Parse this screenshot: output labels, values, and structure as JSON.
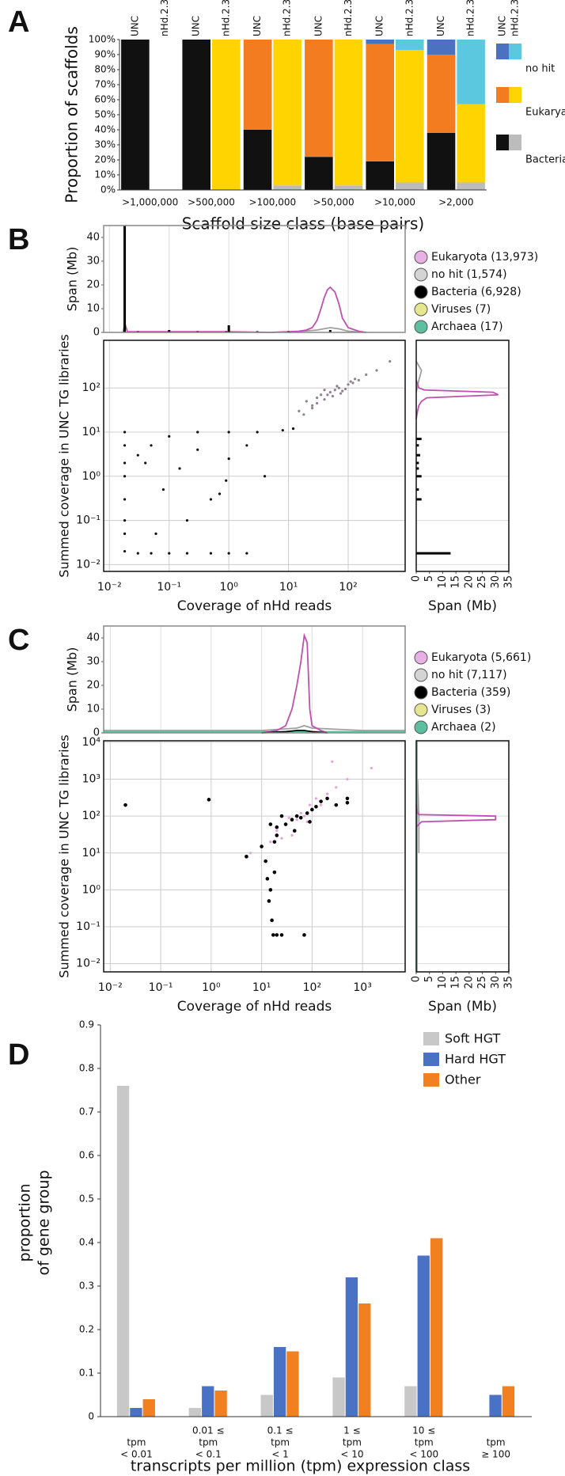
{
  "chart_data": [
    {
      "label": "A",
      "type": "stacked_bar",
      "ylabel": "Proportion of scaffolds",
      "xlabel": "Scaffold size class (base pairs)",
      "categories": [
        ">1,000,000",
        ">500,000",
        ">100,000",
        ">50,000",
        ">10,000",
        ">2,000"
      ],
      "groups": [
        "UNC",
        "nHd.2.3"
      ],
      "ylim": [
        0,
        100
      ],
      "yticks": [
        {
          "value": 0,
          "label": "0%"
        },
        {
          "value": 10,
          "label": "10%"
        },
        {
          "value": 20,
          "label": "20%"
        },
        {
          "value": 30,
          "label": "30%"
        },
        {
          "value": 40,
          "label": "40%"
        },
        {
          "value": 50,
          "label": "50%"
        },
        {
          "value": 60,
          "label": "60%"
        },
        {
          "value": 70,
          "label": "70%"
        },
        {
          "value": 80,
          "label": "80%"
        },
        {
          "value": 90,
          "label": "90%"
        },
        {
          "value": 100,
          "label": "100%"
        }
      ],
      "series": [
        {
          "name": "Bacteria",
          "colors": [
            "#111111",
            "#bcbcbc"
          ],
          "values": [
            [
              100,
              0
            ],
            [
              100,
              0
            ],
            [
              40,
              3
            ],
            [
              22,
              3
            ],
            [
              19,
              5
            ],
            [
              38,
              5
            ]
          ]
        },
        {
          "name": "Eukarya",
          "colors": [
            "#f47c20",
            "#ffd400"
          ],
          "values": [
            [
              0,
              0
            ],
            [
              0,
              100
            ],
            [
              60,
              97
            ],
            [
              78,
              97
            ],
            [
              78,
              88
            ],
            [
              52,
              52
            ]
          ]
        },
        {
          "name": "no hit",
          "colors": [
            "#4a72c0",
            "#5cc8e0"
          ],
          "values": [
            [
              0,
              0
            ],
            [
              0,
              0
            ],
            [
              0,
              0
            ],
            [
              0,
              0
            ],
            [
              3,
              7
            ],
            [
              10,
              43
            ]
          ]
        }
      ]
    },
    {
      "label": "B",
      "type": "scatter_marginal",
      "ylabel": "Summed coverage in UNC TG libraries",
      "xlabel": "Coverage of nHd reads",
      "log": true,
      "grid": true,
      "xlim": [
        0.008,
        900
      ],
      "ylim": [
        0.007,
        1200
      ],
      "xticks": [
        {
          "value": 0.01,
          "label": "10⁻²"
        },
        {
          "value": 0.1,
          "label": "10⁻¹"
        },
        {
          "value": 1,
          "label": "10⁰"
        },
        {
          "value": 10,
          "label": "10¹"
        },
        {
          "value": 100,
          "label": "10²"
        }
      ],
      "yticks": [
        {
          "value": 0.01,
          "label": "10⁻²"
        },
        {
          "value": 0.1,
          "label": "10⁻¹"
        },
        {
          "value": 1,
          "label": "10⁰"
        },
        {
          "value": 10,
          "label": "10¹"
        },
        {
          "value": 100,
          "label": "10²"
        }
      ],
      "legend": [
        {
          "label": "Eukaryota (13,973)",
          "color": "#e8b0e4"
        },
        {
          "label": "no hit (1,574)",
          "color": "#d4d4d4"
        },
        {
          "label": "Bacteria (6,928)",
          "color": "#000000"
        },
        {
          "label": "Viruses (7)",
          "color": "#e6e690"
        },
        {
          "label": "Archaea (17)",
          "color": "#5cc0a0"
        }
      ],
      "series": [
        {
          "color": "#8f818f",
          "x": [
            15,
            20,
            25,
            30,
            35,
            40,
            50,
            60,
            70,
            80,
            100,
            120,
            150,
            200,
            30,
            45,
            55,
            65,
            90,
            110,
            25,
            40,
            75,
            130,
            300,
            500,
            18,
            12
          ],
          "values": [
            30,
            50,
            40,
            60,
            70,
            55,
            80,
            90,
            100,
            85,
            120,
            130,
            150,
            200,
            45,
            70,
            65,
            110,
            95,
            140,
            35,
            90,
            75,
            160,
            250,
            400,
            25,
            12
          ]
        },
        {
          "color": "#111111",
          "x": [
            0.018,
            0.018,
            0.018,
            0.018,
            0.018,
            0.018,
            0.018,
            0.018,
            0.03,
            0.05,
            0.1,
            0.2,
            0.5,
            1,
            2,
            0.03,
            0.05,
            0.1,
            0.3,
            1,
            3,
            8,
            12,
            0.04,
            0.08,
            0.15,
            0.3,
            0.5,
            0.9,
            0.2,
            2,
            0.7,
            0.06,
            4,
            1
          ],
          "values": [
            0.02,
            0.05,
            0.1,
            0.3,
            1,
            2,
            5,
            10,
            0.018,
            0.018,
            0.018,
            0.018,
            0.018,
            0.018,
            0.018,
            3,
            5,
            8,
            10,
            10,
            10,
            11,
            12,
            2,
            0.5,
            1.5,
            4,
            0.3,
            0.8,
            0.1,
            5,
            0.4,
            0.05,
            1,
            2.5
          ]
        }
      ],
      "top": {
        "ylabel": "Span (Mb)",
        "ylim": [
          0,
          45
        ],
        "yticks": [
          0,
          10,
          20,
          30,
          40
        ],
        "series": [
          {
            "style": "line",
            "color": "#a0a0a0",
            "x": [
              10,
              30,
              50,
              70,
              100,
              200
            ],
            "values": [
              0,
              1,
              2,
              1.5,
              0.5,
              0
            ]
          },
          {
            "style": "line",
            "color": "#c050b0",
            "x": [
              0.017,
              0.018,
              0.02,
              1,
              5,
              8,
              10,
              15,
              20,
              25,
              30,
              35,
              40,
              45,
              50,
              60,
              70,
              80,
              100,
              150,
              200
            ],
            "values": [
              0,
              4,
              0.3,
              0.3,
              0,
              0.2,
              0.3,
              0.5,
              1,
              2,
              5,
              10,
              15,
              18,
              19,
              17,
              12,
              6,
              2,
              0.5,
              0
            ]
          },
          {
            "style": "bar",
            "color": "#000000",
            "x": [
              0.018,
              0.03,
              0.1,
              0.3,
              0.9,
              1,
              3,
              10,
              50
            ],
            "values": [
              45,
              0.5,
              1,
              0.5,
              0.5,
              3,
              0.5,
              0.5,
              1
            ]
          }
        ]
      },
      "right": {
        "xlabel": "Span (Mb)",
        "xlim": [
          0,
          35
        ],
        "xticks": [
          0,
          5,
          10,
          15,
          20,
          25,
          30,
          35
        ],
        "series": [
          {
            "style": "line",
            "color": "#a0a0a0",
            "y": [
              80,
              150,
              250,
              400
            ],
            "values": [
              0,
              1,
              2,
              0
            ]
          },
          {
            "style": "line",
            "color": "#c050b0",
            "y": [
              20,
              30,
              40,
              50,
              60,
              70,
              80,
              90,
              100,
              150
            ],
            "values": [
              0,
              0.5,
              1,
              2,
              4,
              31,
              29,
              3,
              1,
              0
            ]
          },
          {
            "style": "bar",
            "color": "#000000",
            "y": [
              0.018,
              0.3,
              0.5,
              1,
              1.5,
              2,
              3,
              5,
              7
            ],
            "values": [
              13,
              2,
              1,
              2,
              1,
              1,
              1.5,
              1,
              2
            ]
          }
        ]
      }
    },
    {
      "label": "C",
      "type": "scatter_marginal",
      "ylabel": "Summed coverage in UNC TG libraries",
      "xlabel": "Coverage of nHd reads",
      "log": true,
      "grid": true,
      "xlim": [
        0.0074,
        7000
      ],
      "ylim": [
        0.006,
        11000
      ],
      "xticks": [
        {
          "value": 0.01,
          "label": "10⁻²"
        },
        {
          "value": 0.1,
          "label": "10⁻¹"
        },
        {
          "value": 1,
          "label": "10⁰"
        },
        {
          "value": 10,
          "label": "10¹"
        },
        {
          "value": 100,
          "label": "10²"
        },
        {
          "value": 1000,
          "label": "10³"
        }
      ],
      "yticks": [
        {
          "value": 0.01,
          "label": "10⁻²"
        },
        {
          "value": 0.1,
          "label": "10⁻¹"
        },
        {
          "value": 1,
          "label": "10⁰"
        },
        {
          "value": 10,
          "label": "10¹"
        },
        {
          "value": 100,
          "label": "10²"
        },
        {
          "value": 1000,
          "label": "10³"
        },
        {
          "value": 10000,
          "label": "10⁴"
        }
      ],
      "legend": [
        {
          "label": "Eukaryota (5,661)",
          "color": "#e8b0e4"
        },
        {
          "label": "no hit (7,117)",
          "color": "#d4d4d4"
        },
        {
          "label": "Bacteria (359)",
          "color": "#000000"
        },
        {
          "label": "Viruses (3)",
          "color": "#e6e690"
        },
        {
          "label": "Archaea (2)",
          "color": "#5cc0a0"
        }
      ],
      "series": [
        {
          "color": "#e6a0e0",
          "x": [
            20,
            30,
            50,
            70,
            100,
            150,
            200,
            300,
            500,
            40,
            60,
            80,
            120,
            25,
            15,
            250,
            1500,
            6,
            35,
            90
          ],
          "values": [
            40,
            60,
            80,
            100,
            150,
            200,
            400,
            600,
            1000,
            30,
            120,
            70,
            300,
            25,
            20,
            3000,
            2000,
            10,
            90,
            200
          ]
        },
        {
          "color": "#000000",
          "x": [
            0.02,
            0.9,
            5,
            10,
            12,
            13,
            15,
            14,
            16,
            18,
            20,
            25,
            17,
            70,
            20,
            30,
            40,
            50,
            60,
            80,
            100,
            150,
            200,
            300,
            500,
            25,
            15,
            45,
            90,
            120,
            500,
            20,
            18
          ],
          "values": [
            200,
            280,
            8,
            15,
            6,
            2,
            1,
            0.5,
            0.15,
            3,
            0.06,
            0.06,
            0.06,
            0.06,
            50,
            60,
            80,
            100,
            90,
            120,
            150,
            250,
            300,
            200,
            300,
            100,
            60,
            40,
            70,
            180,
            230,
            30,
            20
          ]
        }
      ],
      "top": {
        "ylabel": "Span (Mb)",
        "ylim": [
          0,
          45
        ],
        "yticks": [
          0,
          10,
          20,
          30,
          40
        ],
        "series": [
          {
            "style": "line",
            "color": "#5cc0a0",
            "x": [
              0.0074,
              7000
            ],
            "values": [
              0.5,
              0.5
            ]
          },
          {
            "style": "line",
            "color": "#a0a0a0",
            "x": [
              0.0074,
              1,
              10,
              50,
              70,
              100,
              1000,
              7000
            ],
            "values": [
              1,
              1,
              1,
              2,
              3,
              2,
              1,
              1
            ]
          },
          {
            "style": "line",
            "color": "#c050b0",
            "x": [
              10,
              20,
              30,
              40,
              50,
              60,
              70,
              80,
              90,
              100,
              150,
              200
            ],
            "values": [
              0,
              1,
              3,
              10,
              20,
              30,
              41,
              38,
              10,
              3,
              1,
              0
            ]
          },
          {
            "style": "line",
            "color": "#000000",
            "x": [
              10,
              30,
              50,
              70,
              100,
              200
            ],
            "values": [
              0,
              0.5,
              1,
              1,
              0.5,
              0
            ]
          }
        ]
      },
      "right": {
        "xlabel": "Span (Mb)",
        "xlim": [
          0,
          35
        ],
        "xticks": [
          0,
          5,
          10,
          15,
          20,
          25,
          30,
          35
        ],
        "series": [
          {
            "style": "line",
            "color": "#5cc0a0",
            "y": [
              0.006,
              11000
            ],
            "values": [
              0.3,
              0.3
            ]
          },
          {
            "style": "line",
            "color": "#a0a0a0",
            "y": [
              10,
              100,
              1000
            ],
            "values": [
              1,
              1,
              0.5
            ]
          },
          {
            "style": "line",
            "color": "#c050b0",
            "y": [
              50,
              60,
              70,
              80,
              90,
              100,
              110,
              120,
              200
            ],
            "values": [
              0,
              1,
              2,
              30,
              30,
              30,
              1,
              0.5,
              0
            ]
          }
        ]
      }
    },
    {
      "label": "D",
      "type": "grouped_bar",
      "ylabel": [
        "proportion",
        "of gene group"
      ],
      "xlabel": "transcripts per million (tpm) expression class",
      "categories": [
        [
          "tpm",
          "< 0.01"
        ],
        [
          "0.01 ≤",
          "tpm",
          "< 0.1"
        ],
        [
          "0.1 ≤",
          "tpm",
          "< 1"
        ],
        [
          "1 ≤",
          "tpm",
          "< 10"
        ],
        [
          "10 ≤",
          "tpm",
          "< 100"
        ],
        [
          "tpm",
          "≥ 100"
        ]
      ],
      "ylim": [
        0,
        0.9
      ],
      "yticks": [
        0,
        0.1,
        0.2,
        0.3,
        0.4,
        0.5,
        0.6,
        0.7,
        0.8,
        0.9
      ],
      "series": [
        {
          "name": "Soft HGT",
          "color": "#c8c8c8",
          "values": [
            0.76,
            0.02,
            0.05,
            0.09,
            0.07,
            0
          ]
        },
        {
          "name": "Hard HGT",
          "color": "#4a72c4",
          "values": [
            0.02,
            0.07,
            0.16,
            0.32,
            0.37,
            0.05
          ]
        },
        {
          "name": "Other",
          "color": "#f08020",
          "values": [
            0.04,
            0.06,
            0.15,
            0.26,
            0.41,
            0.07
          ]
        }
      ]
    }
  ]
}
